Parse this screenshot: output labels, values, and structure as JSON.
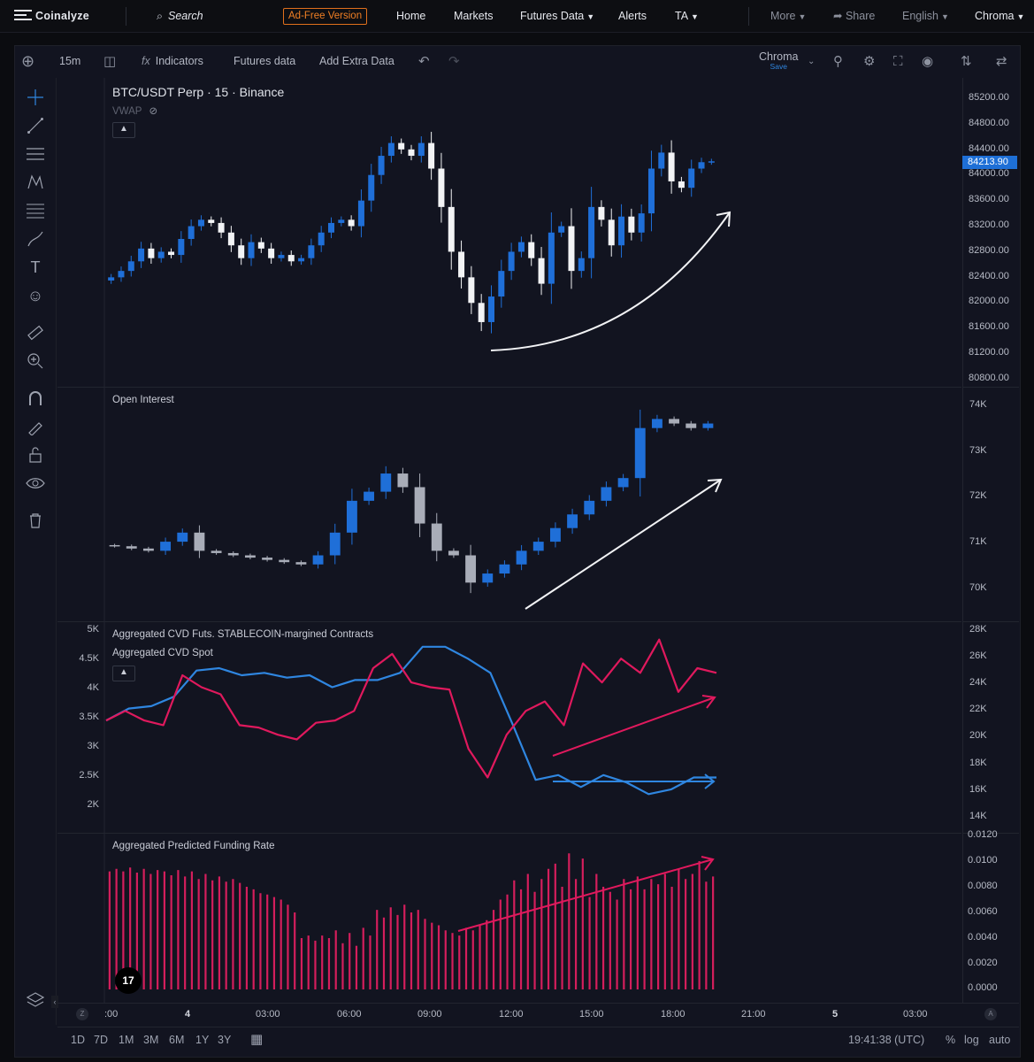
{
  "nav": {
    "logo": "Coinalyze",
    "search": "Search",
    "ad_free": "Ad-Free Version",
    "home": "Home",
    "markets": "Markets",
    "futures_data": "Futures Data",
    "alerts": "Alerts",
    "ta": "TA",
    "more": "More",
    "share": "Share",
    "language": "English",
    "theme": "Chroma"
  },
  "toolbar": {
    "interval": "15m",
    "indicators": "Indicators",
    "futures_data": "Futures data",
    "add_extra": "Add Extra Data",
    "theme_name": "Chroma",
    "theme_save": "Save"
  },
  "price_pane": {
    "title": "BTC/USDT Perp · 15 · Binance",
    "indicator": "VWAP",
    "last_price": "84213.90",
    "axis": [
      "85200.00",
      "84800.00",
      "84400.00",
      "84000.00",
      "83600.00",
      "83200.00",
      "82800.00",
      "82400.00",
      "82000.00",
      "81600.00",
      "81200.00",
      "80800.00"
    ]
  },
  "oi_pane": {
    "title": "Open Interest",
    "axis": [
      "74K",
      "73K",
      "72K",
      "71K",
      "70K"
    ]
  },
  "cvd_pane": {
    "title_futs": "Aggregated CVD Futs. STABLECOIN-margined Contracts",
    "title_spot": "Aggregated CVD Spot",
    "axis_left": [
      "5K",
      "4.5K",
      "4K",
      "3.5K",
      "3K",
      "2.5K",
      "2K"
    ],
    "axis_right": [
      "28K",
      "26K",
      "24K",
      "22K",
      "20K",
      "18K",
      "16K",
      "14K"
    ],
    "colors": {
      "futs": "#e0195d",
      "spot": "#2f86e0"
    }
  },
  "funding_pane": {
    "title": "Aggregated Predicted Funding Rate",
    "axis": [
      "0.0120",
      "0.0100",
      "0.0080",
      "0.0060",
      "0.0040",
      "0.0020",
      "0.0000"
    ],
    "bar_color": "#d41e5c"
  },
  "time_axis": {
    "labels": [
      ":00",
      "4",
      "03:00",
      "06:00",
      "09:00",
      "12:00",
      "15:00",
      "18:00",
      "21:00",
      "5",
      "03:00"
    ],
    "z": "Z",
    "a": "A"
  },
  "bottom": {
    "ranges": [
      "1D",
      "7D",
      "1M",
      "3M",
      "6M",
      "1Y",
      "3Y"
    ],
    "clock": "19:41:38 (UTC)",
    "percent": "%",
    "log": "log",
    "auto": "auto"
  },
  "badge": "17",
  "chart_data": [
    {
      "type": "candlestick",
      "title": "BTC/USDT Perp · 15 · Binance",
      "ylim": [
        80800,
        85200
      ],
      "series": [
        {
          "name": "BTC/USDT Perp",
          "approx_close": [
            82400,
            82500,
            82650,
            82850,
            82700,
            82800,
            82750,
            83000,
            83200,
            83300,
            83250,
            83100,
            82900,
            82700,
            82950,
            82850,
            82700,
            82750,
            82650,
            82700,
            82900,
            83100,
            83250,
            83300,
            83200,
            83600,
            84000,
            84300,
            84500,
            84400,
            84300,
            84500,
            84100,
            83500,
            82800,
            82400,
            82000,
            81700,
            82100,
            82500,
            82800,
            82950,
            82700,
            82300,
            83100,
            83200,
            82500,
            82700,
            83500,
            83300,
            82900,
            83350,
            83100,
            83400,
            84100,
            84350,
            83900,
            83800,
            84100,
            84200,
            84213.9
          ]
        }
      ]
    },
    {
      "type": "candlestick",
      "title": "Open Interest",
      "ylim": [
        69800,
        74200
      ],
      "series": [
        {
          "name": "Open Interest",
          "approx_close": [
            71100,
            71050,
            71000,
            71200,
            71400,
            71000,
            70950,
            70900,
            70850,
            70800,
            70750,
            70700,
            70900,
            71400,
            72100,
            72300,
            72700,
            72400,
            71600,
            71000,
            70900,
            70300,
            70500,
            70700,
            71000,
            71200,
            71500,
            71800,
            72100,
            72400,
            72600,
            73700,
            73900,
            73800,
            73700,
            73800
          ]
        }
      ]
    },
    {
      "type": "line",
      "title": "Aggregated CVD",
      "series": [
        {
          "name": "Aggregated CVD Futs. STABLECOIN-margined Contracts",
          "approx_values": [
            3100,
            3300,
            3100,
            3000,
            4050,
            3800,
            3650,
            3000,
            2950,
            2800,
            2700,
            3050,
            3100,
            3300,
            4200,
            4500,
            3900,
            3800,
            3750,
            2500,
            1900,
            2800,
            3300,
            3500,
            3000,
            4300,
            3900,
            4400,
            4100,
            4800,
            3700,
            4200,
            4100
          ]
        },
        {
          "name": "Aggregated CVD Spot",
          "approx_values": [
            3100,
            3350,
            3400,
            3600,
            4150,
            4200,
            4050,
            4100,
            4000,
            4050,
            3800,
            3950,
            3950,
            4100,
            4650,
            4650,
            4400,
            4100,
            3000,
            1850,
            1950,
            1700,
            1950,
            1800,
            1550,
            1650,
            1900,
            1900
          ]
        }
      ]
    },
    {
      "type": "bar",
      "title": "Aggregated Predicted Funding Rate",
      "ylim": [
        0,
        0.012
      ],
      "values": [
        0.0092,
        0.0094,
        0.0092,
        0.0095,
        0.0091,
        0.0094,
        0.009,
        0.0093,
        0.0092,
        0.0089,
        0.0093,
        0.0088,
        0.0092,
        0.0086,
        0.009,
        0.0085,
        0.0088,
        0.0084,
        0.0086,
        0.0083,
        0.008,
        0.0078,
        0.0075,
        0.0074,
        0.0072,
        0.007,
        0.0066,
        0.006,
        0.004,
        0.0042,
        0.0038,
        0.0042,
        0.004,
        0.0046,
        0.0036,
        0.0044,
        0.0034,
        0.0048,
        0.0042,
        0.0062,
        0.0056,
        0.0064,
        0.0058,
        0.0066,
        0.006,
        0.0062,
        0.0055,
        0.0052,
        0.005,
        0.0046,
        0.0044,
        0.0042,
        0.0048,
        0.0046,
        0.005,
        0.0054,
        0.0062,
        0.007,
        0.0074,
        0.0085,
        0.0078,
        0.009,
        0.0076,
        0.0086,
        0.0094,
        0.0098,
        0.008,
        0.0106,
        0.0086,
        0.0102,
        0.0072,
        0.009,
        0.008,
        0.0076,
        0.007,
        0.0086,
        0.0078,
        0.0088,
        0.0078,
        0.0086,
        0.0082,
        0.009,
        0.008,
        0.0094,
        0.0086,
        0.009,
        0.01,
        0.0084,
        0.0088
      ]
    }
  ]
}
